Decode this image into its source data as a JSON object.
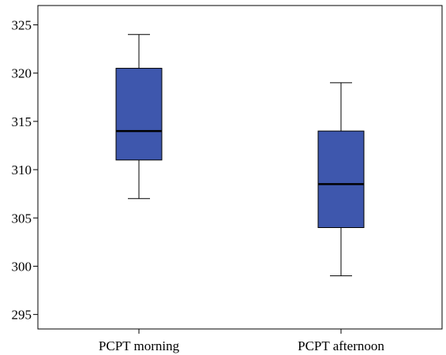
{
  "chart_data": {
    "type": "boxplot",
    "ylim": [
      293.5,
      327
    ],
    "yticks": [
      295,
      300,
      305,
      310,
      315,
      320,
      325
    ],
    "ytick_labels": [
      "295",
      "300",
      "305",
      "310",
      "315",
      "320",
      "325"
    ],
    "categories": [
      "PCPT morning",
      "PCPT afternoon"
    ],
    "boxes": [
      {
        "category": "PCPT morning",
        "min": 307,
        "q1": 311,
        "median": 314,
        "q3": 320.5,
        "max": 324
      },
      {
        "category": "PCPT afternoon",
        "min": 299,
        "q1": 304,
        "median": 308.5,
        "q3": 314,
        "max": 319
      }
    ],
    "box_fill": "#3e57ad",
    "grid": false,
    "title": "",
    "xlabel": "",
    "ylabel": ""
  }
}
